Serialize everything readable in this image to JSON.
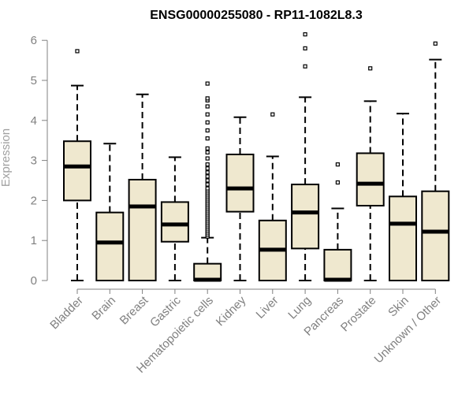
{
  "chart_data": {
    "type": "boxplot",
    "title": "ENSG00000255080 - RP11-1082L8.3",
    "xlabel": "",
    "ylabel": "Expression",
    "ylim": [
      0,
      6.2
    ],
    "yticks": [
      0,
      1,
      2,
      3,
      4,
      5,
      6
    ],
    "grid": false,
    "colors": {
      "box_fill": "#efe8cf",
      "stroke": "#000000",
      "axis": "#808080"
    },
    "categories": [
      "Bladder",
      "Brain",
      "Breast",
      "Gastric",
      "Hematopoietic cells",
      "Kidney",
      "Liver",
      "Lung",
      "Pancreas",
      "Prostate",
      "Skin",
      "Unknown / Other"
    ],
    "boxes": [
      {
        "min": 0,
        "q1": 2.0,
        "median": 2.85,
        "q3": 3.48,
        "max": 4.87,
        "outliers": [
          5.73
        ]
      },
      {
        "min": 0,
        "q1": 0,
        "median": 0.95,
        "q3": 1.7,
        "max": 3.42,
        "outliers": []
      },
      {
        "min": 0,
        "q1": 0,
        "median": 1.85,
        "q3": 2.52,
        "max": 4.65,
        "outliers": []
      },
      {
        "min": 0,
        "q1": 0.97,
        "median": 1.4,
        "q3": 1.96,
        "max": 3.08,
        "outliers": []
      },
      {
        "min": 0,
        "q1": 0,
        "median": 0.02,
        "q3": 0.42,
        "max": 1.07,
        "outliers": [
          1.1,
          1.15,
          1.2,
          1.25,
          1.3,
          1.35,
          1.4,
          1.45,
          1.5,
          1.55,
          1.6,
          1.65,
          1.7,
          1.75,
          1.8,
          1.85,
          1.9,
          1.95,
          2.0,
          2.05,
          2.1,
          2.15,
          2.2,
          2.25,
          2.3,
          2.4,
          2.5,
          2.6,
          2.7,
          2.8,
          2.9,
          3.05,
          3.2,
          3.3,
          3.55,
          3.75,
          3.95,
          4.15,
          4.35,
          4.5,
          4.55,
          4.92
        ]
      },
      {
        "min": 0,
        "q1": 1.72,
        "median": 2.3,
        "q3": 3.15,
        "max": 4.08,
        "outliers": []
      },
      {
        "min": 0,
        "q1": 0,
        "median": 0.77,
        "q3": 1.5,
        "max": 3.1,
        "outliers": [
          4.15
        ]
      },
      {
        "min": 0,
        "q1": 0.8,
        "median": 1.7,
        "q3": 2.4,
        "max": 4.58,
        "outliers": [
          5.35,
          5.8,
          6.15
        ]
      },
      {
        "min": 0,
        "q1": 0,
        "median": 0.02,
        "q3": 0.77,
        "max": 1.8,
        "outliers": [
          2.45,
          2.9
        ]
      },
      {
        "min": 0,
        "q1": 1.87,
        "median": 2.42,
        "q3": 3.18,
        "max": 4.48,
        "outliers": [
          5.3
        ]
      },
      {
        "min": 0,
        "q1": 0,
        "median": 1.42,
        "q3": 2.1,
        "max": 4.17,
        "outliers": []
      },
      {
        "min": 0,
        "q1": 0,
        "median": 1.22,
        "q3": 2.23,
        "max": 5.52,
        "outliers": [
          5.92
        ]
      }
    ]
  }
}
